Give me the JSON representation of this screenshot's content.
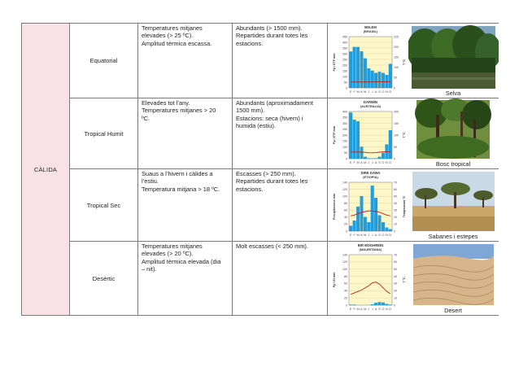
{
  "zone": {
    "label": "CÀLIDA",
    "color": "#f9e2e6"
  },
  "rows": [
    {
      "type": "Equatorial",
      "temperature": [
        "Temperatures mitjanes",
        "elevades (> 25 ºC).",
        "Amplitud tèrmica escassa."
      ],
      "precipitation": [
        "Abundants (> 1500 mm).",
        "Repartides durant totes les",
        "estacions."
      ],
      "photo_caption": "Selva",
      "chart": {
        "title": "BELEM",
        "subtitle": "(BRASIL)",
        "left_label": "Pp i ETP mm",
        "right_label": "T ºC",
        "months": [
          "E",
          "F",
          "M",
          "A",
          "M",
          "J",
          "J",
          "A",
          "S",
          "O",
          "N",
          "D"
        ],
        "left_ticks": [
          "450",
          "400",
          "350",
          "300",
          "250",
          "200",
          "150",
          "100",
          "50",
          "0"
        ],
        "right_ticks": [
          "225",
          "200",
          "150",
          "100",
          "50",
          "0"
        ],
        "precip_mm": [
          318,
          358,
          358,
          320,
          258,
          170,
          150,
          130,
          140,
          130,
          112,
          210
        ],
        "temp_c": [
          26.1,
          25.8,
          25.9,
          26.1,
          26.3,
          26.3,
          26.2,
          26.5,
          26.5,
          26.6,
          26.8,
          26.5
        ],
        "left_max": 450,
        "right_max": 225
      }
    },
    {
      "type": "Tropical Humit",
      "temperature": [
        "Elevades tot l’any.",
        "Temperatures mitjanes > 20",
        "ºC."
      ],
      "precipitation": [
        "Abundants (aproximadament",
        "1500 mm).",
        "Estacions: seca (hivern) i",
        "humida (estiu)."
      ],
      "photo_caption": "Bosc tropical",
      "chart": {
        "title": "DARWIN",
        "subtitle": "(AUSTRALIA)",
        "left_label": "Pp i ETP mm",
        "right_label": "T ºC",
        "months": [
          "E",
          "F",
          "M",
          "A",
          "M",
          "J",
          "J",
          "A",
          "S",
          "O",
          "N",
          "D"
        ],
        "left_ticks": [
          "400",
          "350",
          "300",
          "250",
          "200",
          "150",
          "100",
          "50",
          "0"
        ],
        "right_ticks": [
          "200",
          "150",
          "100",
          "50",
          "0"
        ],
        "precip_mm": [
          390,
          330,
          315,
          100,
          15,
          3,
          1,
          2,
          15,
          50,
          120,
          240
        ],
        "temp_c": [
          28.5,
          28.2,
          28.3,
          27.8,
          26.8,
          25.3,
          24.8,
          25.8,
          27.8,
          29.0,
          29.2,
          28.9
        ],
        "left_max": 400,
        "right_max": 200
      }
    },
    {
      "type": "Tropical Sec",
      "temperature": [
        "Suaus a l’hivern i càlides a",
        "l’estiu.",
        "Temperatura mitjana > 18 ºC."
      ],
      "precipitation": [
        "Escasses (> 250 mm).",
        "Repartides durant totes les",
        "estacions."
      ],
      "photo_caption": "Sabanes i estepes",
      "chart": {
        "title": "DIRE DAWA",
        "subtitle": "(ETIOPIA)",
        "left_label": "Precipitacions mm",
        "right_label": "Temperatura ºC",
        "months": [
          "E",
          "F",
          "M",
          "A",
          "M",
          "J",
          "J",
          "A",
          "S",
          "O",
          "N",
          "D"
        ],
        "left_ticks": [
          "140",
          "120",
          "100",
          "80",
          "60",
          "40",
          "20",
          "0"
        ],
        "right_ticks": [
          "70",
          "60",
          "50",
          "40",
          "30",
          "20",
          "10",
          "0"
        ],
        "precip_mm": [
          15,
          30,
          70,
          100,
          40,
          25,
          130,
          95,
          45,
          25,
          10,
          5
        ],
        "temp_c": [
          22,
          23,
          25,
          27,
          28,
          29,
          29,
          28,
          27,
          25,
          23,
          22
        ],
        "left_max": 140,
        "right_max": 70
      }
    },
    {
      "type": "Desèrtic",
      "temperature": [
        "Temperatures mitjanes",
        "elevades (> 20 ºC).",
        "Amplitud tèrmica elevada (dia",
        "– nit)."
      ],
      "precipitation": [
        "Molt escasses (< 250 mm)."
      ],
      "photo_caption": "Desert",
      "chart": {
        "title": "BIR MOGHREIN",
        "subtitle": "(MAURITANIA)",
        "left_label": "Pp i Et mm",
        "right_label": "T ºC",
        "months": [
          "E",
          "F",
          "M",
          "A",
          "M",
          "J",
          "J",
          "A",
          "S",
          "O",
          "N",
          "D"
        ],
        "left_ticks": [
          "140",
          "120",
          "100",
          "80",
          "60",
          "40",
          "20",
          "0"
        ],
        "right_ticks": [
          "70",
          "60",
          "50",
          "40",
          "30",
          "20",
          "10",
          "0"
        ],
        "precip_mm": [
          1,
          1,
          0,
          0,
          0,
          0,
          2,
          6,
          8,
          7,
          3,
          1
        ],
        "temp_c": [
          15,
          17,
          19,
          21,
          24,
          27,
          31,
          32,
          29,
          24,
          19,
          16
        ],
        "left_max": 140,
        "right_max": 70
      }
    }
  ]
}
